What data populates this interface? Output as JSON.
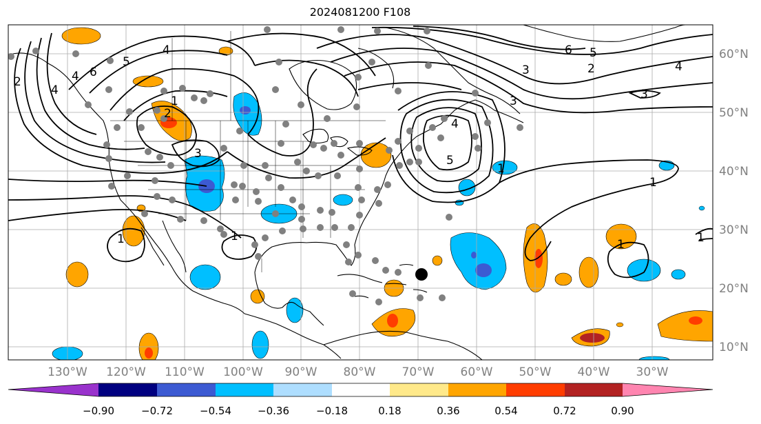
{
  "title": "2024081200 F108",
  "lon_labels": [
    "130°W",
    "120°W",
    "110°W",
    "100°W",
    "90°W",
    "80°W",
    "70°W",
    "60°W",
    "50°W",
    "40°W",
    "30°W"
  ],
  "lat_labels": [
    "60°N",
    "50°N",
    "40°N",
    "30°N",
    "20°N",
    "10°N"
  ],
  "colorbar": {
    "tick_labels": [
      "−0.90",
      "−0.72",
      "−0.54",
      "−0.36",
      "−0.18",
      "0.18",
      "0.36",
      "0.54",
      "0.72",
      "0.90"
    ],
    "colors": [
      "#9932CC",
      "#000080",
      "#3C5AD2",
      "#00BFFF",
      "#AEDEFF",
      "#FFFFFF",
      "#FFE98A",
      "#FFA500",
      "#FF3D00",
      "#B22222",
      "#FF85B0"
    ]
  },
  "contour_labels": [
    {
      "text": "2",
      "key": "w-coast"
    },
    {
      "text": "4",
      "key": "nw-4"
    },
    {
      "text": "6",
      "key": "nw-6"
    },
    {
      "text": "5",
      "key": "nw-5"
    },
    {
      "text": "4",
      "key": "ak-4"
    },
    {
      "text": "4",
      "key": "pnw-4"
    },
    {
      "text": "1",
      "key": "mt-1"
    },
    {
      "text": "2",
      "key": "mt-2"
    },
    {
      "text": "3",
      "key": "wy-3"
    },
    {
      "text": "1",
      "key": "tx-1"
    },
    {
      "text": "1",
      "key": "baja-1"
    },
    {
      "text": "4",
      "key": "atl-4"
    },
    {
      "text": "5",
      "key": "atl-5"
    },
    {
      "text": "1",
      "key": "atl-1"
    },
    {
      "text": "3",
      "key": "lab-3"
    },
    {
      "text": "6",
      "key": "gr-6"
    },
    {
      "text": "5",
      "key": "gr-5"
    },
    {
      "text": "3",
      "key": "gr-3"
    },
    {
      "text": "2",
      "key": "gr-2"
    },
    {
      "text": "4",
      "key": "gr-4"
    },
    {
      "text": "3",
      "key": "ic-3"
    },
    {
      "text": "1",
      "key": "matl-1"
    },
    {
      "text": "1",
      "key": "sub-1"
    },
    {
      "text": "1",
      "key": "e-1"
    }
  ],
  "legend_colors": {
    "contour": "#000000",
    "coast": "#000000",
    "station_dot": "#808080",
    "marker": "#000000",
    "grid": "#AAAAAA"
  }
}
